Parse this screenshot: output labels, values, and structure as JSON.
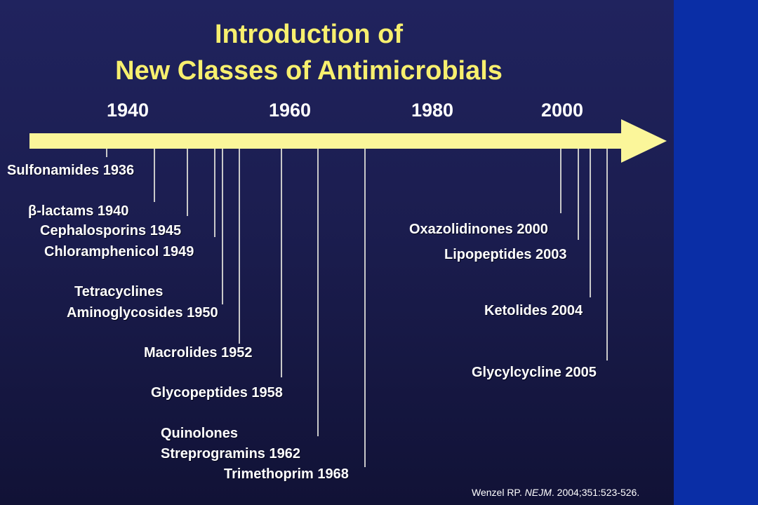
{
  "title": {
    "line1": "Introduction of",
    "line2": "New Classes of Antimicrobials"
  },
  "timeline": {
    "years": [
      "1940",
      "1960",
      "1980",
      "2000"
    ],
    "entries": [
      {
        "id": "sulfonamides",
        "lines": [
          "Sulfonamides 1936"
        ]
      },
      {
        "id": "b-lactams",
        "lines": [
          "β-lactams 1940"
        ]
      },
      {
        "id": "cephalosporins",
        "lines": [
          "Cephalosporins 1945"
        ]
      },
      {
        "id": "chloramphenicol",
        "lines": [
          "Chloramphenicol  1949"
        ]
      },
      {
        "id": "tetracyclines-aminoglycosides",
        "lines": [
          "Tetracyclines",
          "Aminoglycosides 1950"
        ]
      },
      {
        "id": "macrolides",
        "lines": [
          "Macrolides 1952"
        ]
      },
      {
        "id": "glycopeptides",
        "lines": [
          "Glycopeptides 1958"
        ]
      },
      {
        "id": "quinolones-streprogramins",
        "lines": [
          "Quinolones",
          "Streprogramins 1962"
        ]
      },
      {
        "id": "trimethoprim",
        "lines": [
          "Trimethoprim  1968"
        ]
      },
      {
        "id": "oxazolidinones",
        "lines": [
          "Oxazolidinones 2000"
        ]
      },
      {
        "id": "lipopeptides",
        "lines": [
          "Lipopeptides 2003"
        ]
      },
      {
        "id": "ketolides",
        "lines": [
          "Ketolides 2004"
        ]
      },
      {
        "id": "glycylcycline",
        "lines": [
          "Glycylcycline 2005"
        ]
      }
    ]
  },
  "citation": {
    "author": "Wenzel RP. ",
    "journal": "NEJM",
    "ref": ".  2004;351:523-526."
  },
  "colors": {
    "title": "#f7ef6e",
    "arrow": "#fbf69a",
    "sidebar": "#0a2ea6",
    "background": "#1e2157"
  }
}
